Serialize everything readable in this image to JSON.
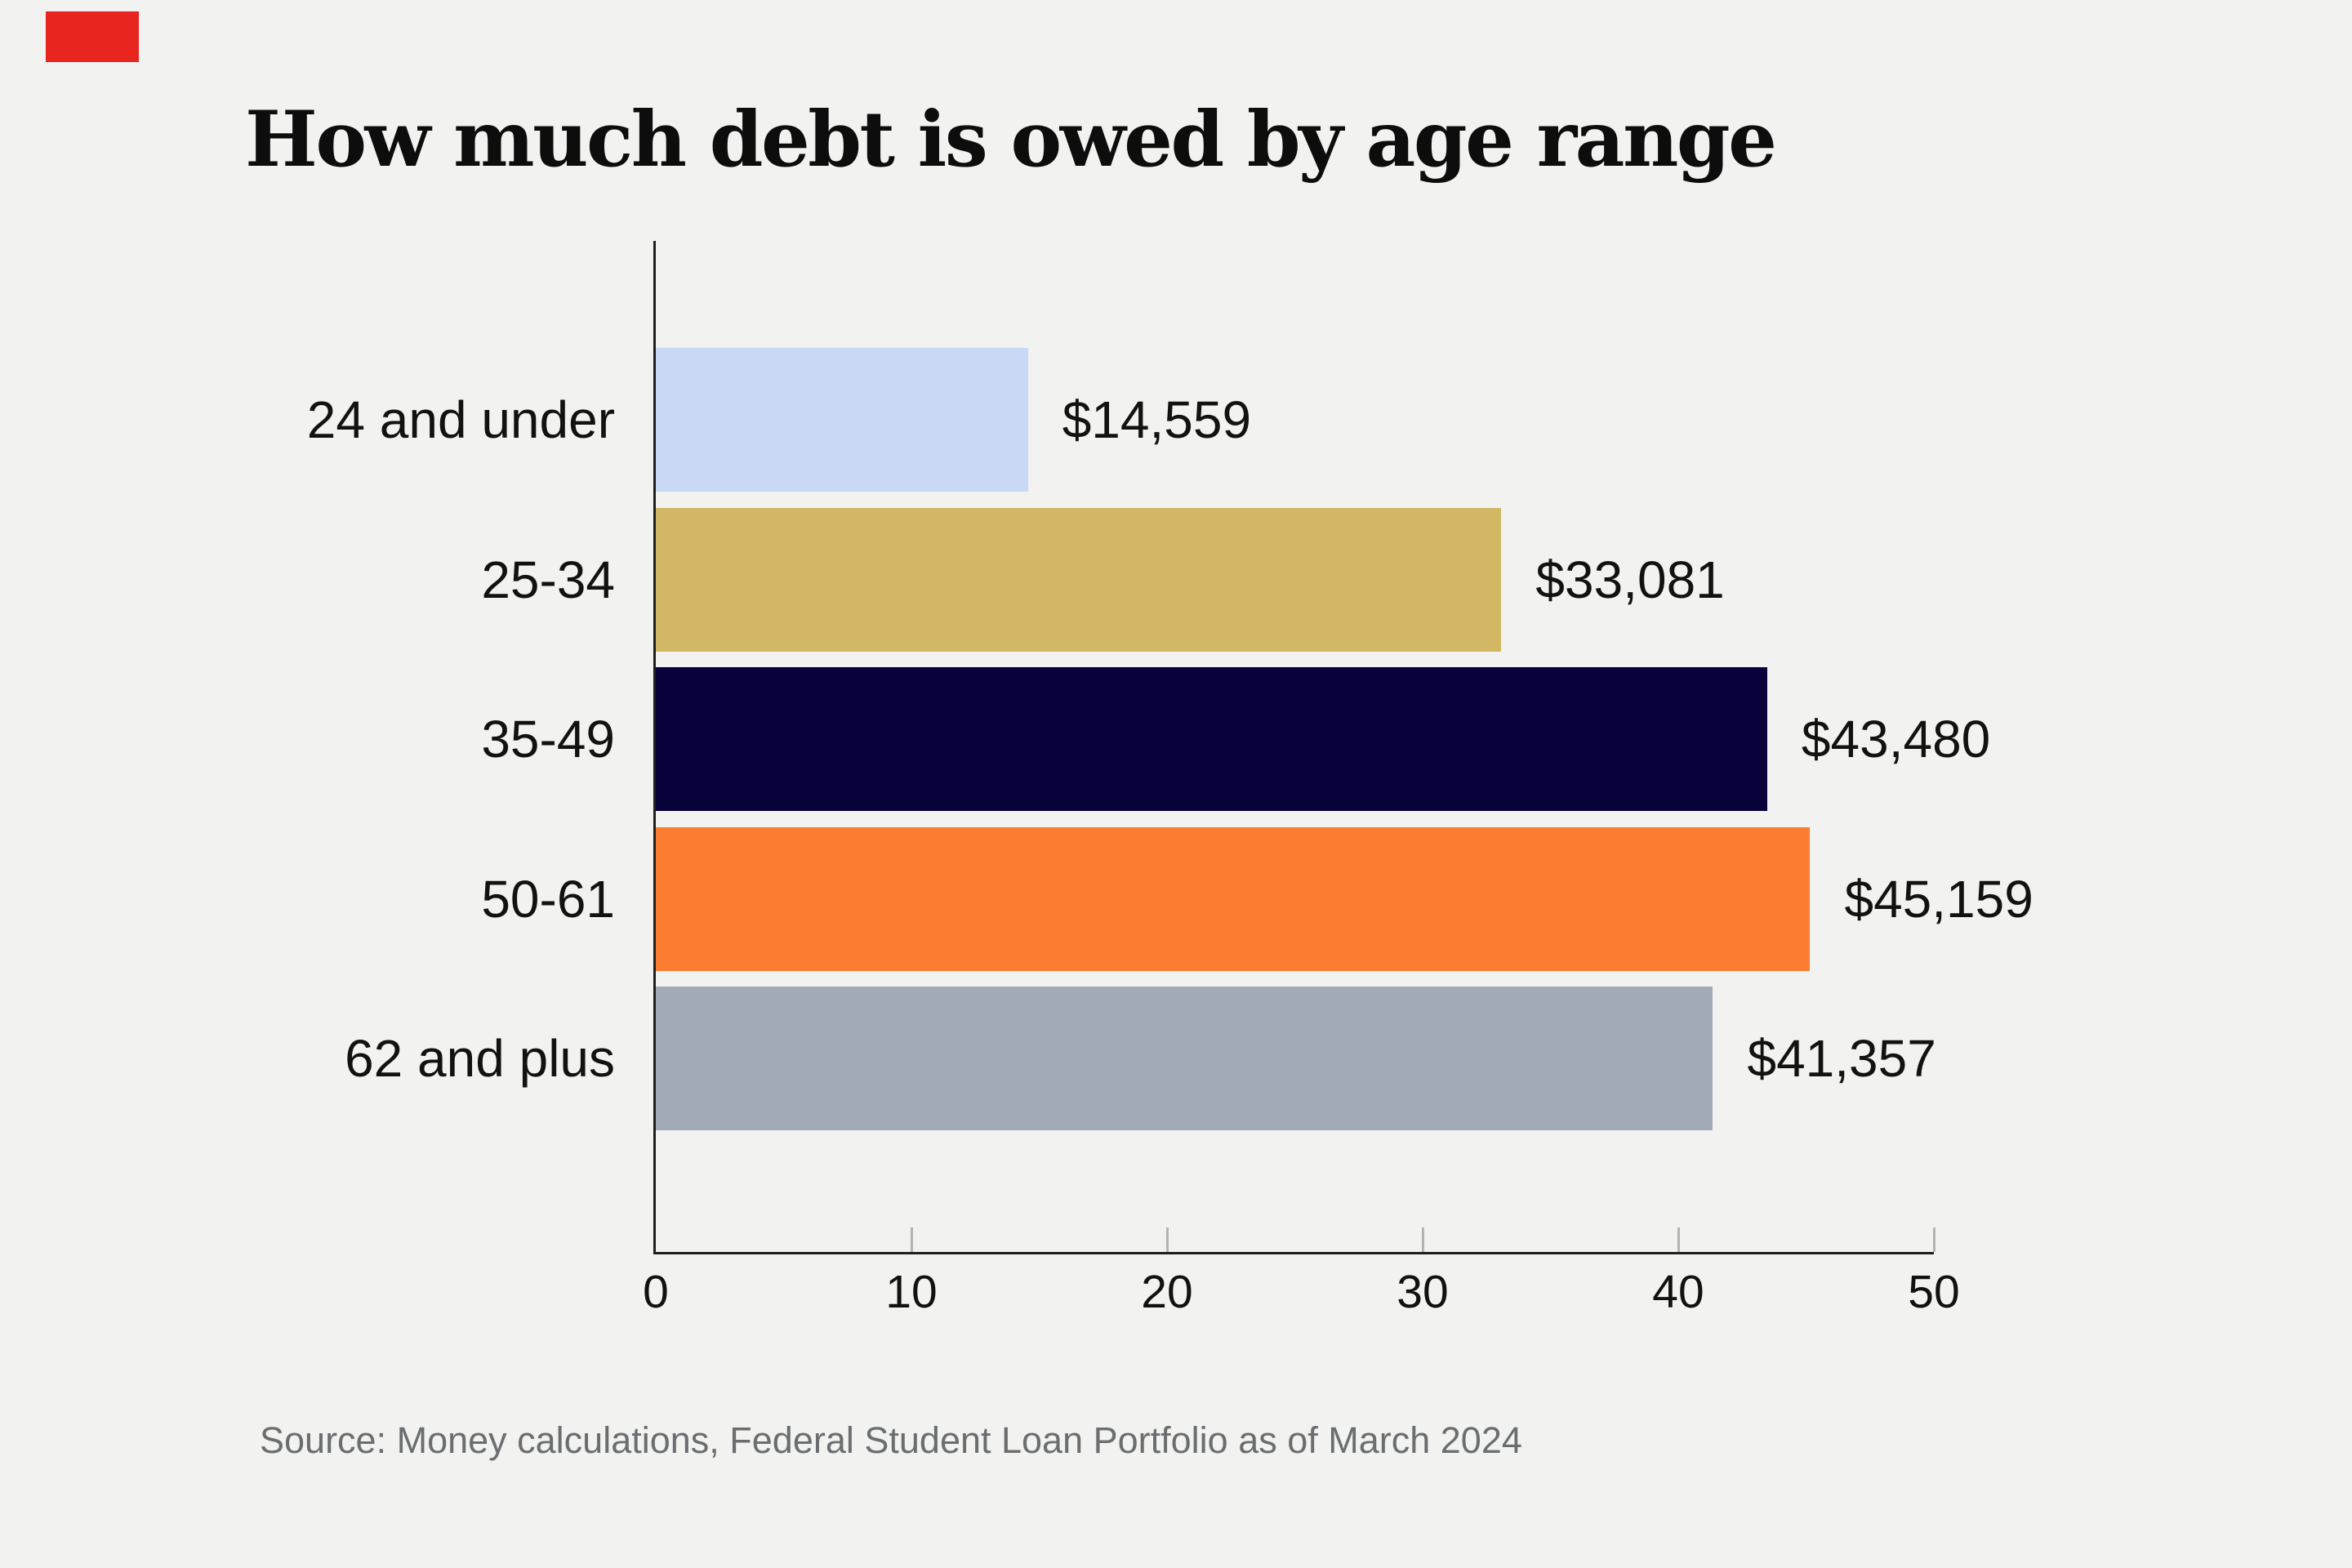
{
  "page": {
    "background_color": "#f2f2f0"
  },
  "brand": {
    "mark_color": "#e8251f"
  },
  "chart_data": {
    "type": "bar",
    "orientation": "horizontal",
    "title": "How much debt is owed by age range",
    "categories": [
      "24 and under",
      "25-34",
      "35-49",
      "50-61",
      "62 and plus"
    ],
    "values": [
      14559,
      33081,
      43480,
      45159,
      41357
    ],
    "value_labels": [
      "$14,559",
      "$33,081",
      "$43,480",
      "$45,159",
      "$41,357"
    ],
    "bar_colors": [
      "#c9d8f4",
      "#d2b765",
      "#07023a",
      "#fc7c31",
      "#a2aab8"
    ],
    "x_ticks": [
      0,
      10,
      20,
      30,
      40,
      50
    ],
    "x_tick_labels": [
      "0",
      "10",
      "20",
      "30",
      "40",
      "50"
    ],
    "xlim": [
      0,
      50
    ],
    "x_value_divisor": 1000,
    "grid": false,
    "legend": false,
    "axis_color": "#1f1f1f",
    "source": "Source: Money calculations, Federal Student Loan Portfolio as of March 2024"
  }
}
